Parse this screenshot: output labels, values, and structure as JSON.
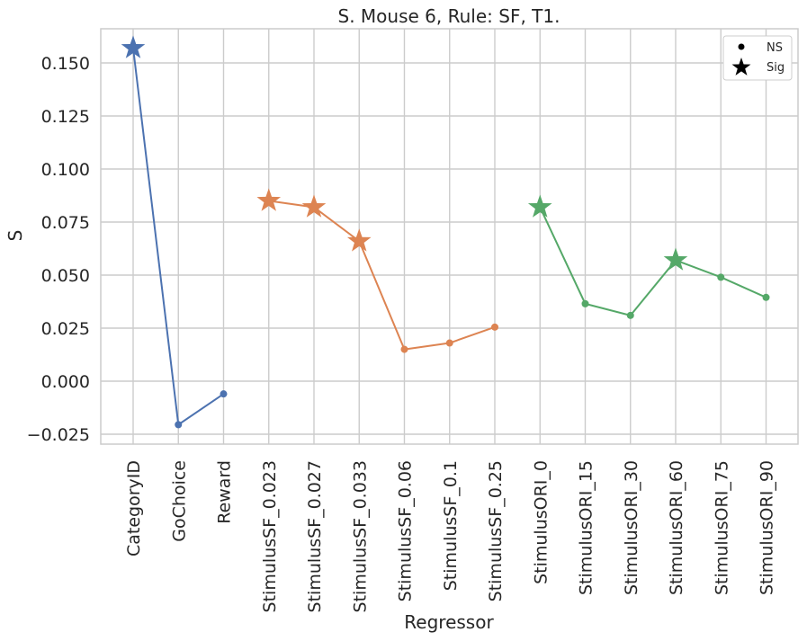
{
  "chart_data": {
    "type": "line",
    "title": "S. Mouse 6, Rule: SF, T1.",
    "xlabel": "Regressor",
    "ylabel": "S",
    "categories": [
      "CategoryID",
      "GoChoice",
      "Reward",
      "StimulusSF_0.023",
      "StimulusSF_0.027",
      "StimulusSF_0.033",
      "StimulusSF_0.06",
      "StimulusSF_0.1",
      "StimulusSF_0.25",
      "StimulusORI_0",
      "StimulusORI_15",
      "StimulusORI_30",
      "StimulusORI_60",
      "StimulusORI_75",
      "StimulusORI_90"
    ],
    "ylim": [
      -0.03,
      0.165
    ],
    "yticks": [
      -0.025,
      0.0,
      0.025,
      0.05,
      0.075,
      0.1,
      0.125,
      0.15
    ],
    "ytick_labels": [
      "−0.025",
      "0.000",
      "0.025",
      "0.050",
      "0.075",
      "0.100",
      "0.125",
      "0.150"
    ],
    "grid": true,
    "series": [
      {
        "color": "#4c72b0",
        "points": [
          {
            "cat": 0,
            "value": 0.157,
            "sig": true
          },
          {
            "cat": 1,
            "value": -0.0205,
            "sig": false
          },
          {
            "cat": 2,
            "value": -0.006,
            "sig": false
          }
        ]
      },
      {
        "color": "#dd8452",
        "points": [
          {
            "cat": 3,
            "value": 0.085,
            "sig": true
          },
          {
            "cat": 4,
            "value": 0.082,
            "sig": true
          },
          {
            "cat": 5,
            "value": 0.066,
            "sig": true
          },
          {
            "cat": 6,
            "value": 0.015,
            "sig": false
          },
          {
            "cat": 7,
            "value": 0.018,
            "sig": false
          },
          {
            "cat": 8,
            "value": 0.0255,
            "sig": false
          }
        ]
      },
      {
        "color": "#55a868",
        "points": [
          {
            "cat": 9,
            "value": 0.082,
            "sig": true
          },
          {
            "cat": 10,
            "value": 0.0365,
            "sig": false
          },
          {
            "cat": 11,
            "value": 0.031,
            "sig": false
          },
          {
            "cat": 12,
            "value": 0.057,
            "sig": true
          },
          {
            "cat": 13,
            "value": 0.049,
            "sig": false
          },
          {
            "cat": 14,
            "value": 0.0395,
            "sig": false
          }
        ]
      }
    ],
    "legend": {
      "position": "top-right",
      "entries": [
        {
          "label": "NS",
          "marker": "dot"
        },
        {
          "label": "Sig",
          "marker": "star"
        }
      ]
    }
  }
}
